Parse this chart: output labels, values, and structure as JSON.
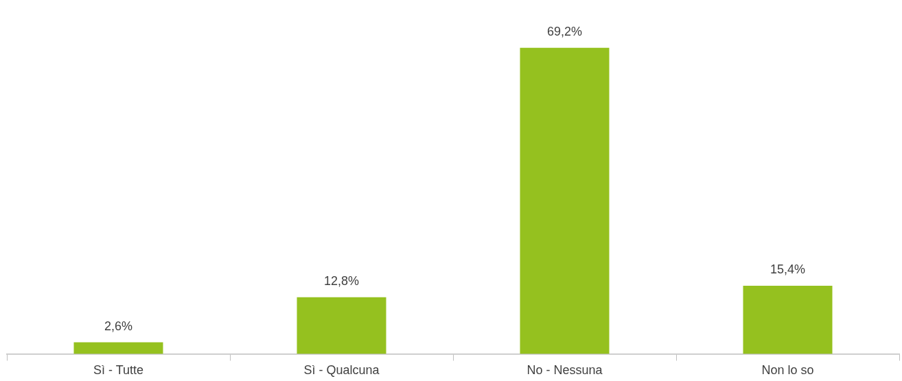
{
  "chart_data": {
    "type": "bar",
    "categories": [
      "Sì - Tutte",
      "Sì - Qualcuna",
      "No - Nessuna",
      "Non lo so"
    ],
    "values": [
      2.6,
      12.8,
      69.2,
      15.4
    ],
    "value_labels": [
      "2,6%",
      "12,8%",
      "69,2%",
      "15,4%"
    ],
    "color": "#95c11f",
    "grid": false,
    "legend": false
  }
}
